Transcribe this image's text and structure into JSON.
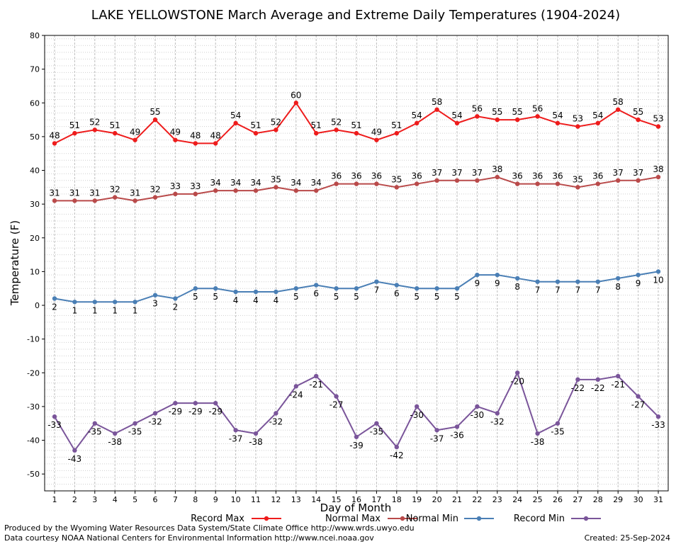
{
  "chart_data": {
    "type": "line",
    "title": "LAKE YELLOWSTONE March Average and Extreme Daily Temperatures (1904-2024)",
    "xlabel": "Day of Month",
    "ylabel": "Temperature (F)",
    "ylim": [
      -55,
      80
    ],
    "yticks": [
      80,
      70,
      60,
      50,
      40,
      30,
      20,
      10,
      0,
      -10,
      -20,
      -30,
      -40,
      -50
    ],
    "x": [
      1,
      2,
      3,
      4,
      5,
      6,
      7,
      8,
      9,
      10,
      11,
      12,
      13,
      14,
      15,
      16,
      17,
      18,
      19,
      20,
      21,
      22,
      23,
      24,
      25,
      26,
      27,
      28,
      29,
      30,
      31
    ],
    "grid": true,
    "legend_position": "bottom",
    "series": [
      {
        "name": "Record Max",
        "color": "#ee1c1c",
        "label_pos": "above",
        "values": [
          48,
          51,
          52,
          51,
          49,
          55,
          49,
          48,
          48,
          54,
          51,
          52,
          60,
          51,
          52,
          51,
          49,
          51,
          54,
          58,
          54,
          56,
          55,
          55,
          56,
          54,
          53,
          54,
          58,
          55,
          53
        ]
      },
      {
        "name": "Normal Max",
        "color": "#b94a4a",
        "label_pos": "above",
        "values": [
          31,
          31,
          31,
          32,
          31,
          32,
          33,
          33,
          34,
          34,
          34,
          35,
          34,
          34,
          36,
          36,
          36,
          35,
          36,
          37,
          37,
          37,
          38,
          36,
          36,
          36,
          35,
          36,
          37,
          37,
          38
        ]
      },
      {
        "name": "Normal Min",
        "color": "#4a7fb5",
        "label_pos": "below",
        "values": [
          2,
          1,
          1,
          1,
          1,
          3,
          2,
          5,
          5,
          4,
          4,
          4,
          5,
          6,
          5,
          5,
          7,
          6,
          5,
          5,
          5,
          9,
          9,
          8,
          7,
          7,
          7,
          7,
          8,
          9,
          10
        ]
      },
      {
        "name": "Record Min",
        "color": "#7a559a",
        "label_pos": "below",
        "values": [
          -33,
          -43,
          -35,
          -38,
          -35,
          -32,
          -29,
          -29,
          -29,
          -37,
          -38,
          -32,
          -24,
          -21,
          -27,
          -39,
          -35,
          -42,
          -30,
          -37,
          -36,
          -30,
          -32,
          -20,
          -38,
          -35,
          -22,
          -22,
          -21,
          -27,
          -33
        ]
      }
    ]
  },
  "footer": {
    "produced_by": "Produced by the Wyoming Water Resources Data System/State Climate Office http://www.wrds.uwyo.edu",
    "courtesy": "Data courtesy NOAA National Centers for Environmental Information http://www.ncei.noaa.gov",
    "created": "Created:  25-Sep-2024"
  }
}
